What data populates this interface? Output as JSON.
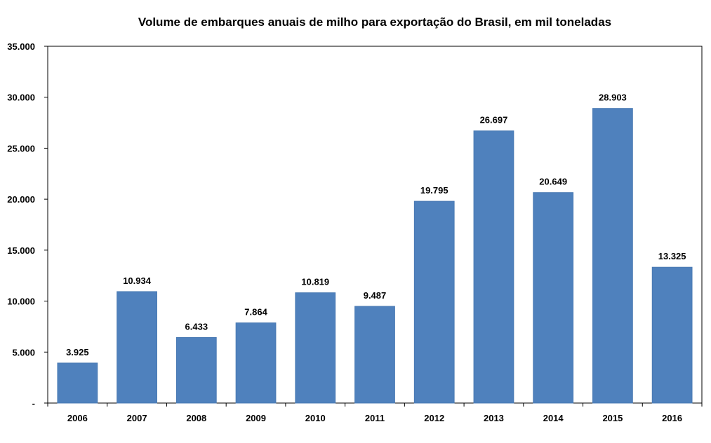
{
  "chart_data": {
    "type": "bar",
    "title": "Volume de embarques anuais de milho para exportação do Brasil, em mil toneladas",
    "categories": [
      "2006",
      "2007",
      "2008",
      "2009",
      "2010",
      "2011",
      "2012",
      "2013",
      "2014",
      "2015",
      "2016"
    ],
    "values": [
      3925,
      10934,
      6433,
      7864,
      10819,
      9487,
      19795,
      26697,
      20649,
      28903,
      13325
    ],
    "data_labels": [
      "3.925",
      "10.934",
      "6.433",
      "7.864",
      "10.819",
      "9.487",
      "19.795",
      "26.697",
      "20.649",
      "28.903",
      "13.325"
    ],
    "yticks": [
      0,
      5000,
      10000,
      15000,
      20000,
      25000,
      30000,
      35000
    ],
    "ytick_labels": [
      "-",
      "5.000",
      "10.000",
      "15.000",
      "20.000",
      "25.000",
      "30.000",
      "35.000"
    ],
    "ylim": [
      0,
      35000
    ],
    "xlabel": "",
    "ylabel": "",
    "grid": false,
    "legend": "none",
    "bar_color": "#4f81bd"
  }
}
